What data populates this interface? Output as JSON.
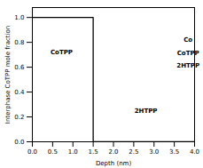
{
  "chart_data": {
    "type": "line",
    "x_label": "Depth (nm)",
    "y_label": "Interphase CoTPP mole fraction",
    "x": [
      0.0,
      1.5,
      1.5,
      4.0
    ],
    "values": [
      1.0,
      1.0,
      0.0,
      0.0
    ],
    "color": "black",
    "xlim": [
      0.0,
      4.0
    ],
    "ylim": [
      0.0,
      1.08
    ],
    "xticks": [
      {
        "value": 0,
        "label": "0.0"
      },
      0.5,
      {
        "value": 1,
        "label": "1.0"
      },
      1.5,
      {
        "value": 2,
        "label": "2.0"
      },
      2.5,
      {
        "value": 3,
        "label": "3.0"
      },
      3.5,
      {
        "value": 4,
        "label": "4.0"
      }
    ],
    "yticks": [
      {
        "value": 0,
        "label": "0.0"
      },
      0.2,
      0.4,
      0.6,
      0.8,
      {
        "value": 1,
        "label": "1.0"
      }
    ],
    "annotations": [
      {
        "text": "CoTPP",
        "x": 0.72,
        "y": 0.72
      },
      {
        "text": "Co",
        "x": 3.84,
        "y": 0.82
      },
      {
        "text": "CoTPP",
        "x": 3.84,
        "y": 0.715
      },
      {
        "text": "2HTPP",
        "x": 3.84,
        "y": 0.61
      },
      {
        "text": "2HTPP",
        "x": 2.8,
        "y": 0.25
      }
    ]
  }
}
